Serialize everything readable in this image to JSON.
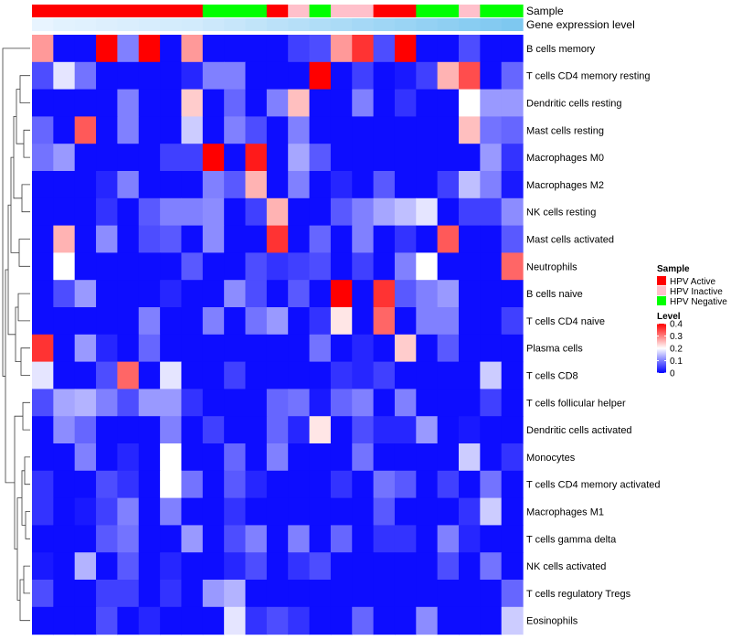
{
  "chart_data": {
    "type": "heatmap",
    "annotation_labels": {
      "sample": "Sample",
      "level": "Gene expression level"
    },
    "sample_annotation": [
      "HPV Active",
      "HPV Active",
      "HPV Active",
      "HPV Active",
      "HPV Active",
      "HPV Active",
      "HPV Active",
      "HPV Active",
      "HPV Negative",
      "HPV Negative",
      "HPV Negative",
      "HPV Active",
      "HPV Inactive",
      "HPV Negative",
      "HPV Inactive",
      "HPV Inactive",
      "HPV Active",
      "HPV Active",
      "HPV Negative",
      "HPV Negative",
      "HPV Inactive",
      "HPV Negative",
      "HPV Negative"
    ],
    "level_annotation": [
      0.4,
      0.38,
      0.37,
      0.36,
      0.35,
      0.34,
      0.33,
      0.32,
      0.3,
      0.28,
      0.26,
      0.24,
      0.22,
      0.2,
      0.18,
      0.16,
      0.14,
      0.12,
      0.1,
      0.08,
      0.06,
      0.04,
      0.02
    ],
    "rows": [
      "B cells memory",
      "T cells CD4 memory resting",
      "Dendritic cells resting",
      "Mast cells resting",
      "Macrophages M0",
      "Macrophages M2",
      "NK cells resting",
      "Mast cells activated",
      "Neutrophils",
      "B cells naive",
      "T cells CD4 naive",
      "Plasma cells",
      "T cells CD8",
      "T cells follicular helper",
      "Dendritic cells activated",
      "Monocytes",
      "T cells CD4 memory activated",
      "Macrophages M1",
      "T cells gamma delta",
      "NK cells activated",
      "T cells regulatory  Tregs",
      "Eosinophils"
    ],
    "values": [
      [
        0.28,
        0.01,
        0.01,
        0.4,
        0.1,
        0.4,
        0.01,
        0.28,
        0.01,
        0.01,
        0.01,
        0.01,
        0.05,
        0.06,
        0.28,
        0.36,
        0.06,
        0.4,
        0.01,
        0.01,
        0.06,
        0.01,
        0.01
      ],
      [
        0.06,
        0.18,
        0.09,
        0.01,
        0.01,
        0.01,
        0.01,
        0.03,
        0.1,
        0.1,
        0.01,
        0.01,
        0.01,
        0.4,
        0.01,
        0.05,
        0.01,
        0.02,
        0.05,
        0.26,
        0.34,
        0.01,
        0.08
      ],
      [
        0.01,
        0.01,
        0.01,
        0.01,
        0.1,
        0.01,
        0.01,
        0.24,
        0.01,
        0.08,
        0.01,
        0.1,
        0.25,
        0.01,
        0.01,
        0.1,
        0.01,
        0.04,
        0.01,
        0.01,
        0.2,
        0.12,
        0.12
      ],
      [
        0.08,
        0.01,
        0.33,
        0.01,
        0.1,
        0.01,
        0.01,
        0.16,
        0.01,
        0.1,
        0.06,
        0.01,
        0.1,
        0.01,
        0.01,
        0.01,
        0.01,
        0.01,
        0.01,
        0.01,
        0.25,
        0.09,
        0.08
      ],
      [
        0.09,
        0.12,
        0.01,
        0.01,
        0.01,
        0.01,
        0.05,
        0.05,
        0.4,
        0.01,
        0.38,
        0.01,
        0.13,
        0.07,
        0.01,
        0.01,
        0.01,
        0.01,
        0.01,
        0.01,
        0.01,
        0.12,
        0.04
      ],
      [
        0.01,
        0.01,
        0.01,
        0.03,
        0.1,
        0.01,
        0.01,
        0.01,
        0.1,
        0.07,
        0.26,
        0.01,
        0.1,
        0.01,
        0.03,
        0.01,
        0.07,
        0.01,
        0.01,
        0.05,
        0.15,
        0.1,
        0.02
      ],
      [
        0.01,
        0.01,
        0.01,
        0.04,
        0.01,
        0.07,
        0.1,
        0.1,
        0.11,
        0.01,
        0.05,
        0.26,
        0.01,
        0.01,
        0.07,
        0.1,
        0.13,
        0.15,
        0.18,
        0.01,
        0.05,
        0.05,
        0.11
      ],
      [
        0.01,
        0.26,
        0.01,
        0.11,
        0.01,
        0.06,
        0.07,
        0.01,
        0.11,
        0.01,
        0.01,
        0.36,
        0.01,
        0.08,
        0.01,
        0.1,
        0.01,
        0.04,
        0.01,
        0.33,
        0.01,
        0.01,
        0.07
      ],
      [
        0.01,
        0.2,
        0.01,
        0.01,
        0.01,
        0.01,
        0.01,
        0.07,
        0.01,
        0.01,
        0.06,
        0.04,
        0.05,
        0.06,
        0.01,
        0.05,
        0.01,
        0.1,
        0.2,
        0.01,
        0.01,
        0.01,
        0.32
      ],
      [
        0.01,
        0.06,
        0.12,
        0.01,
        0.01,
        0.01,
        0.03,
        0.01,
        0.01,
        0.11,
        0.06,
        0.01,
        0.07,
        0.01,
        0.4,
        0.01,
        0.36,
        0.07,
        0.1,
        0.12,
        0.01,
        0.01,
        0.01
      ],
      [
        0.01,
        0.01,
        0.01,
        0.01,
        0.01,
        0.1,
        0.01,
        0.01,
        0.1,
        0.01,
        0.09,
        0.12,
        0.01,
        0.04,
        0.22,
        0.01,
        0.32,
        0.01,
        0.1,
        0.1,
        0.01,
        0.01,
        0.05
      ],
      [
        0.36,
        0.01,
        0.12,
        0.03,
        0.01,
        0.08,
        0.01,
        0.01,
        0.01,
        0.01,
        0.01,
        0.01,
        0.01,
        0.09,
        0.01,
        0.03,
        0.01,
        0.24,
        0.01,
        0.07,
        0.01,
        0.01,
        0.01
      ],
      [
        0.18,
        0.01,
        0.01,
        0.06,
        0.32,
        0.01,
        0.18,
        0.01,
        0.01,
        0.05,
        0.01,
        0.01,
        0.01,
        0.01,
        0.04,
        0.03,
        0.05,
        0.01,
        0.01,
        0.01,
        0.01,
        0.16,
        0.01
      ],
      [
        0.06,
        0.13,
        0.14,
        0.1,
        0.06,
        0.12,
        0.12,
        0.04,
        0.01,
        0.01,
        0.01,
        0.08,
        0.09,
        0.02,
        0.08,
        0.1,
        0.01,
        0.1,
        0.01,
        0.01,
        0.01,
        0.05,
        0.01
      ],
      [
        0.01,
        0.11,
        0.08,
        0.01,
        0.01,
        0.01,
        0.1,
        0.01,
        0.05,
        0.01,
        0.01,
        0.08,
        0.03,
        0.22,
        0.01,
        0.06,
        0.03,
        0.03,
        0.12,
        0.01,
        0.02,
        0.01,
        0.01
      ],
      [
        0.01,
        0.01,
        0.1,
        0.01,
        0.03,
        0.01,
        0.2,
        0.01,
        0.01,
        0.08,
        0.01,
        0.1,
        0.01,
        0.01,
        0.01,
        0.09,
        0.01,
        0.01,
        0.01,
        0.01,
        0.16,
        0.01,
        0.04
      ],
      [
        0.04,
        0.01,
        0.01,
        0.06,
        0.04,
        0.01,
        0.2,
        0.09,
        0.01,
        0.07,
        0.03,
        0.01,
        0.01,
        0.01,
        0.04,
        0.01,
        0.09,
        0.07,
        0.01,
        0.05,
        0.01,
        0.09,
        0.01
      ],
      [
        0.04,
        0.01,
        0.02,
        0.05,
        0.1,
        0.01,
        0.1,
        0.01,
        0.01,
        0.04,
        0.01,
        0.01,
        0.01,
        0.01,
        0.01,
        0.01,
        0.07,
        0.01,
        0.01,
        0.01,
        0.04,
        0.16,
        0.01
      ],
      [
        0.01,
        0.01,
        0.01,
        0.07,
        0.09,
        0.01,
        0.01,
        0.12,
        0.01,
        0.06,
        0.1,
        0.01,
        0.1,
        0.01,
        0.08,
        0.01,
        0.04,
        0.04,
        0.01,
        0.1,
        0.03,
        0.01,
        0.01
      ],
      [
        0.02,
        0.01,
        0.14,
        0.01,
        0.07,
        0.01,
        0.03,
        0.01,
        0.01,
        0.03,
        0.06,
        0.01,
        0.04,
        0.06,
        0.01,
        0.01,
        0.01,
        0.01,
        0.01,
        0.06,
        0.01,
        0.09,
        0.01
      ],
      [
        0.06,
        0.01,
        0.01,
        0.05,
        0.05,
        0.01,
        0.04,
        0.01,
        0.12,
        0.14,
        0.01,
        0.01,
        0.01,
        0.01,
        0.01,
        0.01,
        0.01,
        0.01,
        0.01,
        0.01,
        0.01,
        0.01,
        0.08
      ],
      [
        0.01,
        0.01,
        0.01,
        0.06,
        0.01,
        0.03,
        0.01,
        0.01,
        0.01,
        0.18,
        0.04,
        0.06,
        0.04,
        0.01,
        0.01,
        0.08,
        0.01,
        0.01,
        0.11,
        0.01,
        0.01,
        0.01,
        0.16
      ]
    ],
    "legend": {
      "sample_title": "Sample",
      "sample_entries": [
        {
          "label": "HPV Active",
          "color": "#ff0000"
        },
        {
          "label": "HPV Inactive",
          "color": "#ffc0cb"
        },
        {
          "label": "HPV Negative",
          "color": "#00ff00"
        }
      ],
      "level_title": "Level",
      "level_ticks": [
        "0.4",
        "0.3",
        "0.2",
        "0.1",
        "0"
      ],
      "level_tick_values": [
        0.4,
        0.3,
        0.2,
        0.1,
        0
      ],
      "color_low": "#0000ff",
      "color_mid": "#ffffff",
      "color_high": "#ff0000",
      "range": [
        0,
        0.4
      ]
    },
    "level_annotation_colors": {
      "low": "#e8f4ff",
      "high": "#7ec8f0"
    },
    "title": "",
    "xlabel": "",
    "ylabel": ""
  }
}
